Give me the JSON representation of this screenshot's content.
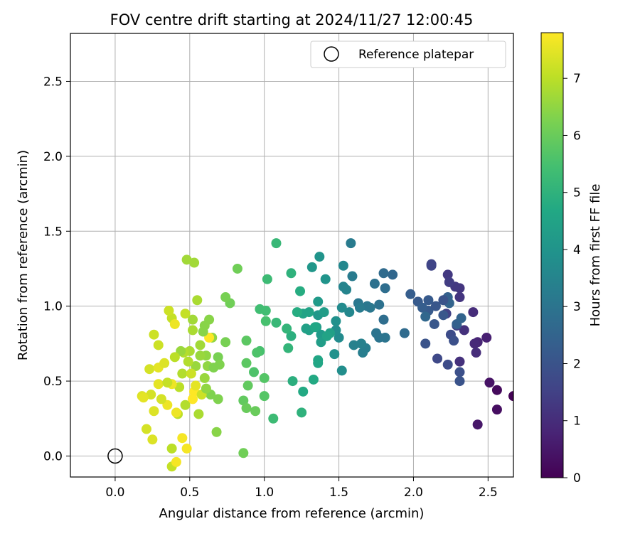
{
  "chart_data": {
    "type": "scatter",
    "title": "FOV centre drift starting at 2024/11/27 12:00:45",
    "xlabel": "Angular distance from reference (arcmin)",
    "ylabel": "Rotation from reference (arcmin)",
    "xlim": [
      -0.3,
      2.67
    ],
    "ylim": [
      -0.14,
      2.82
    ],
    "xticks": [
      "0.0",
      "0.5",
      "1.0",
      "1.5",
      "2.0",
      "2.5"
    ],
    "xtick_values": [
      0.0,
      0.5,
      1.0,
      1.5,
      2.0,
      2.5
    ],
    "yticks": [
      "0.0",
      "0.5",
      "1.0",
      "1.5",
      "2.0",
      "2.5"
    ],
    "ytick_values": [
      0.0,
      0.5,
      1.0,
      1.5,
      2.0,
      2.5
    ],
    "grid": true,
    "legend": {
      "position": "upper-right",
      "label": "Reference platepar",
      "marker": "open-circle"
    },
    "reference_point": {
      "x": 0.0,
      "y": 0.0
    },
    "colorbar": {
      "label": "Hours from first FF file",
      "colormap": "viridis",
      "range": [
        0,
        7.8
      ],
      "ticks": [
        "0",
        "1",
        "2",
        "3",
        "4",
        "5",
        "6",
        "7"
      ],
      "tick_values": [
        0,
        1,
        2,
        3,
        4,
        5,
        6,
        7
      ]
    },
    "point_color_variable": "hours",
    "points": [
      {
        "x": 2.67,
        "y": 0.4,
        "h": 0.05
      },
      {
        "x": 2.56,
        "y": 0.44,
        "h": 0.2
      },
      {
        "x": 2.56,
        "y": 0.31,
        "h": 0.3
      },
      {
        "x": 2.51,
        "y": 0.49,
        "h": 0.4
      },
      {
        "x": 2.43,
        "y": 0.21,
        "h": 0.5
      },
      {
        "x": 2.49,
        "y": 0.79,
        "h": 0.7
      },
      {
        "x": 2.43,
        "y": 0.76,
        "h": 0.8
      },
      {
        "x": 2.41,
        "y": 0.75,
        "h": 0.9
      },
      {
        "x": 2.42,
        "y": 0.69,
        "h": 1.0
      },
      {
        "x": 2.4,
        "y": 0.96,
        "h": 1.0
      },
      {
        "x": 2.34,
        "y": 0.84,
        "h": 1.1
      },
      {
        "x": 2.31,
        "y": 0.63,
        "h": 1.1
      },
      {
        "x": 2.31,
        "y": 1.06,
        "h": 1.2
      },
      {
        "x": 2.31,
        "y": 1.12,
        "h": 1.2
      },
      {
        "x": 2.28,
        "y": 1.13,
        "h": 1.3
      },
      {
        "x": 2.23,
        "y": 1.21,
        "h": 1.3
      },
      {
        "x": 2.24,
        "y": 1.16,
        "h": 1.4
      },
      {
        "x": 2.29,
        "y": 0.87,
        "h": 1.5
      },
      {
        "x": 2.22,
        "y": 0.95,
        "h": 1.5
      },
      {
        "x": 2.12,
        "y": 1.28,
        "h": 1.6
      },
      {
        "x": 2.12,
        "y": 1.27,
        "h": 1.6
      },
      {
        "x": 2.16,
        "y": 0.65,
        "h": 1.7
      },
      {
        "x": 2.23,
        "y": 0.61,
        "h": 1.8
      },
      {
        "x": 2.25,
        "y": 0.81,
        "h": 1.8
      },
      {
        "x": 2.27,
        "y": 0.77,
        "h": 1.9
      },
      {
        "x": 2.31,
        "y": 0.56,
        "h": 1.9
      },
      {
        "x": 2.31,
        "y": 0.5,
        "h": 2.0
      },
      {
        "x": 2.08,
        "y": 0.75,
        "h": 2.0
      },
      {
        "x": 2.2,
        "y": 0.94,
        "h": 2.1
      },
      {
        "x": 2.14,
        "y": 0.88,
        "h": 2.1
      },
      {
        "x": 2.1,
        "y": 0.97,
        "h": 2.2
      },
      {
        "x": 2.1,
        "y": 1.04,
        "h": 2.2
      },
      {
        "x": 2.03,
        "y": 1.03,
        "h": 2.2
      },
      {
        "x": 1.98,
        "y": 1.08,
        "h": 2.3
      },
      {
        "x": 2.06,
        "y": 0.99,
        "h": 2.3
      },
      {
        "x": 2.23,
        "y": 1.06,
        "h": 2.4
      },
      {
        "x": 2.29,
        "y": 0.88,
        "h": 2.4
      },
      {
        "x": 2.32,
        "y": 0.92,
        "h": 2.5
      },
      {
        "x": 2.24,
        "y": 1.02,
        "h": 2.5
      },
      {
        "x": 2.08,
        "y": 0.93,
        "h": 2.6
      },
      {
        "x": 1.86,
        "y": 1.21,
        "h": 2.6
      },
      {
        "x": 1.8,
        "y": 1.22,
        "h": 2.7
      },
      {
        "x": 1.94,
        "y": 0.82,
        "h": 2.7
      },
      {
        "x": 1.8,
        "y": 0.91,
        "h": 2.8
      },
      {
        "x": 1.81,
        "y": 1.12,
        "h": 2.8
      },
      {
        "x": 1.74,
        "y": 1.15,
        "h": 2.9
      },
      {
        "x": 1.77,
        "y": 1.01,
        "h": 2.9
      },
      {
        "x": 1.75,
        "y": 0.82,
        "h": 3.0
      },
      {
        "x": 1.81,
        "y": 0.79,
        "h": 3.0
      },
      {
        "x": 1.77,
        "y": 0.79,
        "h": 3.0
      },
      {
        "x": 1.69,
        "y": 1.0,
        "h": 3.1
      },
      {
        "x": 1.63,
        "y": 1.02,
        "h": 3.1
      },
      {
        "x": 1.59,
        "y": 1.2,
        "h": 3.2
      },
      {
        "x": 1.58,
        "y": 1.42,
        "h": 3.2
      },
      {
        "x": 1.68,
        "y": 0.72,
        "h": 3.3
      },
      {
        "x": 1.66,
        "y": 0.69,
        "h": 3.3
      },
      {
        "x": 1.65,
        "y": 0.75,
        "h": 3.4
      },
      {
        "x": 1.6,
        "y": 0.74,
        "h": 3.4
      },
      {
        "x": 1.53,
        "y": 1.13,
        "h": 3.5
      },
      {
        "x": 1.55,
        "y": 1.11,
        "h": 3.5
      },
      {
        "x": 1.53,
        "y": 1.27,
        "h": 3.6
      },
      {
        "x": 1.57,
        "y": 0.96,
        "h": 3.6
      },
      {
        "x": 1.52,
        "y": 0.99,
        "h": 3.7
      },
      {
        "x": 1.5,
        "y": 0.79,
        "h": 3.7
      },
      {
        "x": 1.48,
        "y": 0.84,
        "h": 3.8
      },
      {
        "x": 1.52,
        "y": 0.57,
        "h": 3.8
      },
      {
        "x": 1.48,
        "y": 0.9,
        "h": 3.9
      },
      {
        "x": 1.47,
        "y": 0.68,
        "h": 3.9
      },
      {
        "x": 1.41,
        "y": 1.18,
        "h": 4.0
      },
      {
        "x": 1.37,
        "y": 1.33,
        "h": 4.0
      },
      {
        "x": 1.32,
        "y": 1.26,
        "h": 4.1
      },
      {
        "x": 1.36,
        "y": 0.94,
        "h": 4.1
      },
      {
        "x": 1.36,
        "y": 1.03,
        "h": 4.2
      },
      {
        "x": 1.38,
        "y": 0.81,
        "h": 4.2
      },
      {
        "x": 1.38,
        "y": 0.76,
        "h": 4.3
      },
      {
        "x": 1.35,
        "y": 0.86,
        "h": 4.3
      },
      {
        "x": 1.3,
        "y": 0.84,
        "h": 4.4
      },
      {
        "x": 1.28,
        "y": 0.85,
        "h": 4.4
      },
      {
        "x": 1.3,
        "y": 0.96,
        "h": 4.5
      },
      {
        "x": 1.26,
        "y": 0.95,
        "h": 4.5
      },
      {
        "x": 1.36,
        "y": 0.64,
        "h": 4.6
      },
      {
        "x": 1.36,
        "y": 0.62,
        "h": 4.6
      },
      {
        "x": 1.33,
        "y": 0.51,
        "h": 4.7
      },
      {
        "x": 1.26,
        "y": 0.43,
        "h": 4.7
      },
      {
        "x": 1.24,
        "y": 1.1,
        "h": 4.8
      },
      {
        "x": 1.22,
        "y": 0.96,
        "h": 4.8
      },
      {
        "x": 1.18,
        "y": 0.8,
        "h": 4.9
      },
      {
        "x": 1.19,
        "y": 0.5,
        "h": 4.9
      },
      {
        "x": 1.25,
        "y": 0.29,
        "h": 5.0
      },
      {
        "x": 1.18,
        "y": 1.22,
        "h": 5.0
      },
      {
        "x": 1.15,
        "y": 0.85,
        "h": 5.1
      },
      {
        "x": 1.16,
        "y": 0.72,
        "h": 5.1
      },
      {
        "x": 1.08,
        "y": 1.42,
        "h": 5.2
      },
      {
        "x": 1.08,
        "y": 0.89,
        "h": 5.2
      },
      {
        "x": 1.06,
        "y": 0.25,
        "h": 5.3
      },
      {
        "x": 1.02,
        "y": 1.18,
        "h": 5.3
      },
      {
        "x": 0.97,
        "y": 0.98,
        "h": 5.4
      },
      {
        "x": 1.01,
        "y": 0.97,
        "h": 5.4
      },
      {
        "x": 1.01,
        "y": 0.9,
        "h": 5.5
      },
      {
        "x": 0.97,
        "y": 0.7,
        "h": 5.5
      },
      {
        "x": 0.95,
        "y": 0.69,
        "h": 5.6
      },
      {
        "x": 0.93,
        "y": 0.56,
        "h": 5.6
      },
      {
        "x": 1.0,
        "y": 0.52,
        "h": 5.7
      },
      {
        "x": 1.0,
        "y": 0.4,
        "h": 5.7
      },
      {
        "x": 0.88,
        "y": 0.77,
        "h": 5.8
      },
      {
        "x": 0.88,
        "y": 0.62,
        "h": 5.8
      },
      {
        "x": 0.89,
        "y": 0.47,
        "h": 5.9
      },
      {
        "x": 0.86,
        "y": 0.37,
        "h": 5.9
      },
      {
        "x": 0.88,
        "y": 0.32,
        "h": 6.0
      },
      {
        "x": 0.94,
        "y": 0.3,
        "h": 6.0
      },
      {
        "x": 0.86,
        "y": 0.02,
        "h": 6.1
      },
      {
        "x": 0.82,
        "y": 1.25,
        "h": 6.1
      },
      {
        "x": 0.77,
        "y": 1.02,
        "h": 6.1
      },
      {
        "x": 0.74,
        "y": 1.06,
        "h": 6.2
      },
      {
        "x": 0.74,
        "y": 0.76,
        "h": 6.2
      },
      {
        "x": 0.69,
        "y": 0.66,
        "h": 6.2
      },
      {
        "x": 0.7,
        "y": 0.61,
        "h": 6.3
      },
      {
        "x": 0.69,
        "y": 0.38,
        "h": 6.3
      },
      {
        "x": 0.64,
        "y": 0.41,
        "h": 6.3
      },
      {
        "x": 0.68,
        "y": 0.16,
        "h": 6.4
      },
      {
        "x": 0.63,
        "y": 0.91,
        "h": 6.4
      },
      {
        "x": 0.6,
        "y": 0.87,
        "h": 6.4
      },
      {
        "x": 0.65,
        "y": 0.79,
        "h": 6.5
      },
      {
        "x": 0.61,
        "y": 0.67,
        "h": 6.5
      },
      {
        "x": 0.62,
        "y": 0.6,
        "h": 6.5
      },
      {
        "x": 0.6,
        "y": 0.52,
        "h": 6.6
      },
      {
        "x": 0.57,
        "y": 0.67,
        "h": 6.6
      },
      {
        "x": 0.54,
        "y": 0.6,
        "h": 6.6
      },
      {
        "x": 0.52,
        "y": 0.91,
        "h": 6.7
      },
      {
        "x": 0.48,
        "y": 1.31,
        "h": 6.7
      },
      {
        "x": 0.53,
        "y": 1.29,
        "h": 6.7
      },
      {
        "x": 0.55,
        "y": 1.04,
        "h": 6.8
      },
      {
        "x": 0.52,
        "y": 0.84,
        "h": 6.8
      },
      {
        "x": 0.5,
        "y": 0.7,
        "h": 6.8
      },
      {
        "x": 0.49,
        "y": 0.63,
        "h": 6.9
      },
      {
        "x": 0.46,
        "y": 0.69,
        "h": 6.9
      },
      {
        "x": 0.45,
        "y": 0.55,
        "h": 6.9
      },
      {
        "x": 0.43,
        "y": 0.46,
        "h": 7.0
      },
      {
        "x": 0.42,
        "y": 0.28,
        "h": 7.0
      },
      {
        "x": 0.38,
        "y": 0.05,
        "h": 7.0
      },
      {
        "x": 0.38,
        "y": -0.07,
        "h": 7.1
      },
      {
        "x": 0.47,
        "y": 0.95,
        "h": 7.1
      },
      {
        "x": 0.38,
        "y": 0.92,
        "h": 7.1
      },
      {
        "x": 0.36,
        "y": 0.97,
        "h": 7.2
      },
      {
        "x": 0.29,
        "y": 0.74,
        "h": 7.2
      },
      {
        "x": 0.26,
        "y": 0.81,
        "h": 7.2
      },
      {
        "x": 0.23,
        "y": 0.58,
        "h": 7.3
      },
      {
        "x": 0.24,
        "y": 0.41,
        "h": 7.3
      },
      {
        "x": 0.21,
        "y": 0.18,
        "h": 7.3
      },
      {
        "x": 0.25,
        "y": 0.11,
        "h": 7.4
      },
      {
        "x": 0.26,
        "y": 0.3,
        "h": 7.4
      },
      {
        "x": 0.18,
        "y": 0.4,
        "h": 7.4
      },
      {
        "x": 0.19,
        "y": 0.39,
        "h": 7.5
      },
      {
        "x": 0.29,
        "y": 0.48,
        "h": 7.5
      },
      {
        "x": 0.29,
        "y": 0.59,
        "h": 7.5
      },
      {
        "x": 0.35,
        "y": 0.34,
        "h": 7.6
      },
      {
        "x": 0.4,
        "y": 0.88,
        "h": 7.6
      },
      {
        "x": 0.41,
        "y": 0.29,
        "h": 7.6
      },
      {
        "x": 0.45,
        "y": 0.12,
        "h": 7.7
      },
      {
        "x": 0.48,
        "y": 0.05,
        "h": 7.7
      },
      {
        "x": 0.41,
        "y": -0.04,
        "h": 7.7
      },
      {
        "x": 0.53,
        "y": 0.43,
        "h": 7.8
      },
      {
        "x": 0.52,
        "y": 0.38,
        "h": 7.8
      },
      {
        "x": 0.63,
        "y": 0.79,
        "h": 7.8
      },
      {
        "x": 0.38,
        "y": 0.48,
        "h": 7.6
      },
      {
        "x": 0.33,
        "y": 0.62,
        "h": 7.4
      },
      {
        "x": 0.58,
        "y": 0.41,
        "h": 7.2
      },
      {
        "x": 0.54,
        "y": 0.47,
        "h": 7.5
      },
      {
        "x": 0.47,
        "y": 0.34,
        "h": 6.9
      },
      {
        "x": 0.56,
        "y": 0.28,
        "h": 6.8
      },
      {
        "x": 0.44,
        "y": 0.7,
        "h": 6.6
      },
      {
        "x": 0.57,
        "y": 0.74,
        "h": 6.7
      },
      {
        "x": 0.61,
        "y": 0.45,
        "h": 6.5
      },
      {
        "x": 0.66,
        "y": 0.59,
        "h": 6.3
      },
      {
        "x": 0.59,
        "y": 0.83,
        "h": 6.4
      },
      {
        "x": 0.35,
        "y": 0.49,
        "h": 7.1
      },
      {
        "x": 0.31,
        "y": 0.38,
        "h": 7.3
      },
      {
        "x": 0.4,
        "y": 0.66,
        "h": 7.0
      },
      {
        "x": 0.51,
        "y": 0.55,
        "h": 7.2
      },
      {
        "x": 1.44,
        "y": 0.82,
        "h": 4.4
      },
      {
        "x": 1.42,
        "y": 0.8,
        "h": 4.5
      },
      {
        "x": 1.4,
        "y": 0.96,
        "h": 4.3
      },
      {
        "x": 1.34,
        "y": 0.86,
        "h": 4.6
      },
      {
        "x": 1.64,
        "y": 0.99,
        "h": 3.2
      },
      {
        "x": 1.71,
        "y": 0.99,
        "h": 3.1
      },
      {
        "x": 2.15,
        "y": 1.0,
        "h": 2.1
      },
      {
        "x": 2.2,
        "y": 1.04,
        "h": 2.0
      }
    ]
  }
}
